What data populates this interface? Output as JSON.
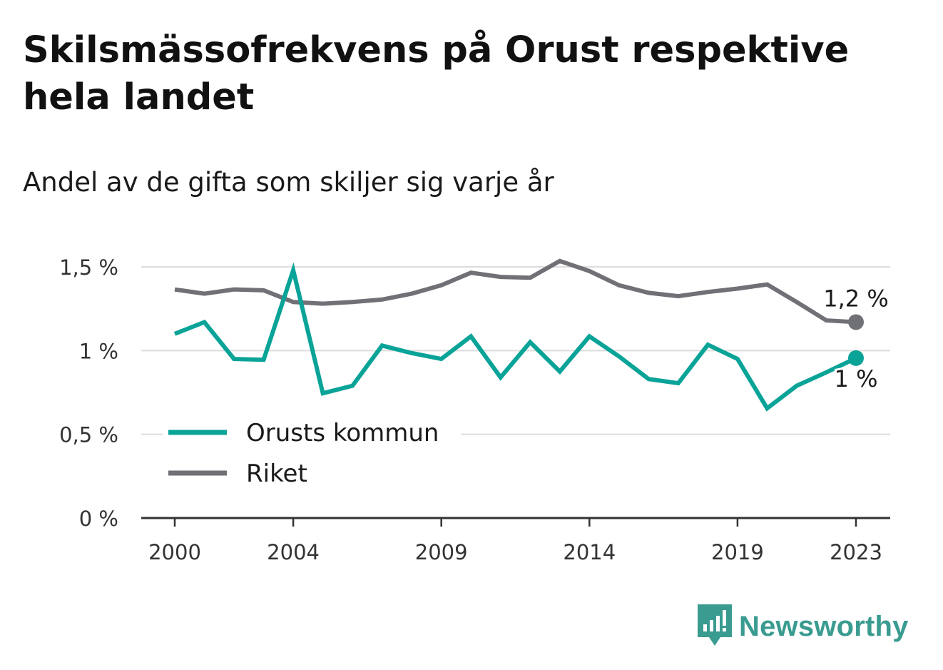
{
  "header": {
    "title": "Skilsmässofrekvens på Orust respektive hela landet",
    "subtitle": "Andel av de gifta som skiljer sig varje år"
  },
  "brand": {
    "name": "Newsworthy",
    "color": "#3a9b90"
  },
  "chart_data": {
    "type": "line",
    "title": "Skilsmässofrekvens på Orust respektive hela landet",
    "subtitle": "Andel av de gifta som skiljer sig varje år",
    "xlabel": "",
    "ylabel": "",
    "x": [
      2000,
      2001,
      2002,
      2003,
      2004,
      2005,
      2006,
      2007,
      2008,
      2009,
      2010,
      2011,
      2012,
      2013,
      2014,
      2015,
      2016,
      2017,
      2018,
      2019,
      2020,
      2021,
      2022,
      2023
    ],
    "x_ticks": [
      2000,
      2004,
      2009,
      2014,
      2019,
      2023
    ],
    "x_tick_labels": [
      "2000",
      "2004",
      "2009",
      "2014",
      "2019",
      "2023"
    ],
    "ylim": [
      0,
      1.5
    ],
    "y_ticks": [
      0,
      0.5,
      1,
      1.5
    ],
    "y_tick_labels": [
      "0 %",
      "0,5 %",
      "1 %",
      "1,5 %"
    ],
    "grid": true,
    "legend_position": "bottom-left",
    "series": [
      {
        "name": "Orusts kommun",
        "color": "#0aa398",
        "values": [
          1.1,
          1.17,
          0.95,
          0.945,
          1.48,
          0.745,
          0.79,
          1.03,
          0.985,
          0.95,
          1.085,
          0.84,
          1.05,
          0.875,
          1.085,
          0.965,
          0.83,
          0.805,
          1.035,
          0.95,
          0.655,
          0.79,
          0.87,
          0.955
        ],
        "end_label": "1 %"
      },
      {
        "name": "Riket",
        "color": "#707077",
        "values": [
          1.365,
          1.34,
          1.365,
          1.36,
          1.29,
          1.28,
          1.29,
          1.305,
          1.34,
          1.39,
          1.465,
          1.44,
          1.435,
          1.535,
          1.475,
          1.39,
          1.345,
          1.325,
          1.35,
          1.37,
          1.395,
          1.29,
          1.18,
          1.17
        ],
        "end_label": "1,2 %"
      }
    ]
  }
}
